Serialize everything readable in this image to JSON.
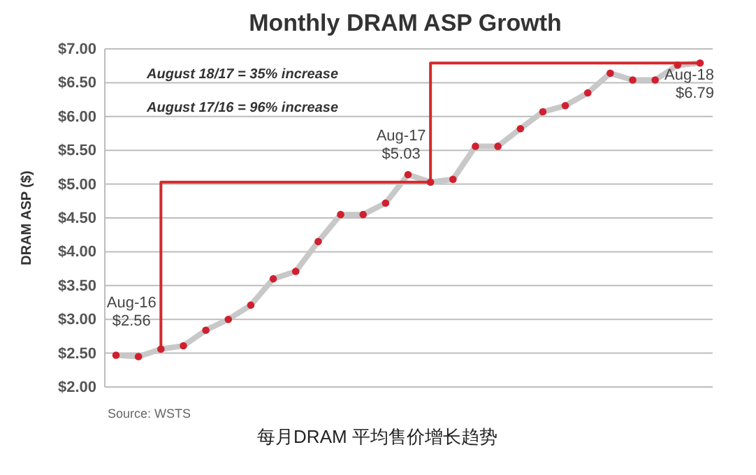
{
  "chart_data": {
    "type": "line",
    "title": "Monthly DRAM ASP Growth",
    "ylabel": "DRAM ASP ($)",
    "categories": [
      null,
      null,
      null,
      null,
      null,
      null,
      null,
      null,
      null,
      null,
      null,
      null,
      null,
      null,
      null,
      null,
      null,
      null,
      null,
      null,
      null,
      null,
      null,
      null,
      null,
      null,
      null
    ],
    "series": [
      {
        "marker": "circle",
        "color": "#c8c8c8",
        "colors": [
          "#d0202f",
          "#d0202f",
          "#d0202f",
          "#d0202f",
          "#d0202f",
          "#d0202f",
          "#d0202f",
          "#d0202f",
          "#d0202f",
          "#d0202f",
          "#d0202f",
          "#d0202f",
          "#d0202f",
          "#d0202f",
          "#d0202f",
          "#d0202f",
          "#d0202f",
          "#d0202f",
          "#d0202f",
          "#d0202f",
          "#d0202f",
          "#d0202f",
          "#d0202f",
          "#d0202f",
          "#d0202f",
          "#d0202f",
          "#d0202f"
        ],
        "values": [
          2.47,
          2.45,
          2.56,
          2.61,
          2.84,
          3.0,
          3.21,
          3.6,
          3.71,
          4.15,
          4.55,
          4.55,
          4.72,
          5.14,
          5.03,
          5.07,
          5.56,
          5.56,
          5.82,
          6.07,
          6.16,
          6.35,
          6.64,
          6.54,
          6.54,
          6.76,
          6.79
        ],
        "value_labels": [
          null,
          null,
          "Aug-16\n$2.56",
          null,
          null,
          null,
          null,
          null,
          null,
          null,
          null,
          null,
          null,
          null,
          "Aug-17\n$5.03",
          null,
          null,
          null,
          null,
          null,
          null,
          null,
          null,
          null,
          null,
          null,
          "Aug-18\n$6.79"
        ]
      },
      {
        "type": "step",
        "color": "#d42a2a",
        "values": [
          null,
          null,
          2.56,
          null,
          null,
          null,
          null,
          null,
          null,
          null,
          null,
          null,
          null,
          null,
          5.03,
          null,
          null,
          null,
          null,
          null,
          null,
          null,
          null,
          null,
          null,
          null,
          6.79
        ]
      }
    ],
    "ylim": [
      2,
      7
    ],
    "yticks": [
      {
        "value": 2,
        "label": "$2.00"
      },
      {
        "value": 2.5,
        "label": "$2.50"
      },
      {
        "value": 3,
        "label": "$3.00"
      },
      {
        "value": 3.5,
        "label": "$3.50"
      },
      {
        "value": 4,
        "label": "$4.00"
      },
      {
        "value": 4.5,
        "label": "$4.50"
      },
      {
        "value": 5,
        "label": "$5.00"
      },
      {
        "value": 5.5,
        "label": "$5.50"
      },
      {
        "value": 6,
        "label": "$6.00"
      },
      {
        "value": 6.5,
        "label": "$6.50"
      },
      {
        "value": 7,
        "label": "$7.00"
      }
    ],
    "grid": "y",
    "tick_labels": "y",
    "annotations": [
      "August 18/17 = 35% increase",
      "August 17/16 = 96% increase",
      "Source:  WSTS",
      "每月DRAM 平均售价增长趋势"
    ]
  }
}
